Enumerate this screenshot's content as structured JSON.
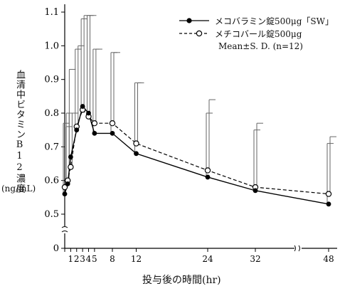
{
  "chart_data": {
    "type": "line",
    "ylabel": "血清中ビタミンB12濃度",
    "yunit": "(ng/mL)",
    "xlabel": "投与後の時間(hr)",
    "x": [
      0,
      0.5,
      1,
      2,
      3,
      4,
      5,
      8,
      12,
      24,
      32,
      48
    ],
    "xticks": [
      0,
      1,
      2,
      3,
      4,
      5,
      8,
      12,
      24,
      32,
      48
    ],
    "yticks": [
      0,
      0.5,
      0.6,
      0.7,
      0.8,
      0.9,
      1.0,
      1.1
    ],
    "ylim": [
      0,
      1.1
    ],
    "series": [
      {
        "name": "メコバラミン錠500μg「SW」",
        "marker": "filled-circle",
        "line": "solid",
        "values": [
          0.56,
          0.59,
          0.67,
          0.75,
          0.82,
          0.8,
          0.74,
          0.74,
          0.68,
          0.61,
          0.57,
          0.53
        ],
        "sd_upper": [
          0.77,
          0.8,
          0.93,
          0.99,
          1.08,
          1.09,
          0.99,
          0.98,
          0.89,
          0.8,
          0.75,
          0.71
        ]
      },
      {
        "name": "メチコバール錠500μg",
        "marker": "open-circle",
        "line": "dashed",
        "values": [
          0.58,
          0.6,
          0.64,
          0.76,
          0.81,
          0.79,
          0.77,
          0.77,
          0.71,
          0.63,
          0.58,
          0.56
        ],
        "sd_upper": [
          0.76,
          0.8,
          0.8,
          1.0,
          1.09,
          1.09,
          0.99,
          0.98,
          0.89,
          0.84,
          0.77,
          0.73
        ]
      }
    ],
    "legend_note": "Mean±S. D. (n=12)",
    "legend_position": "top-right",
    "grid": false
  }
}
